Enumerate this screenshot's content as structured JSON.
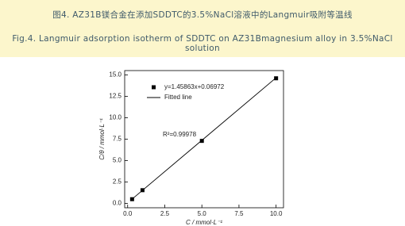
{
  "caption": {
    "cn": "图4. AZ31B镁合金在添加SDDTC的3.5%NaCl溶液中的Langmuir吸附等温线",
    "en": "Fig.4. Langmuir adsorption isotherm of SDDTC on AZ31Bmagnesium alloy in 3.5%NaCl solution"
  },
  "chart_data": {
    "type": "scatter",
    "x_label": "C / mmol·L⁻¹",
    "y_label": "C/θ / mmol·L⁻¹",
    "xlim": [
      -0.2,
      10.5
    ],
    "ylim": [
      -0.5,
      15.5
    ],
    "xticks": [
      {
        "value": 0,
        "label": "0.0"
      },
      {
        "value": 2.5,
        "label": "2.5"
      },
      {
        "value": 5,
        "label": "5.0"
      },
      {
        "value": 7.5,
        "label": "7.5"
      },
      {
        "value": 10,
        "label": "10.0"
      }
    ],
    "yticks": [
      {
        "value": 0,
        "label": "0.0"
      },
      {
        "value": 2.5,
        "label": "2.5"
      },
      {
        "value": 5,
        "label": "5.0"
      },
      {
        "value": 7.5,
        "label": "7.5"
      },
      {
        "value": 10,
        "label": "10.0"
      },
      {
        "value": 12.5,
        "label": "12.5"
      },
      {
        "value": 15,
        "label": "15.0"
      }
    ],
    "series": [
      {
        "name": "y=1.45863x+0.06972",
        "color": "#000000",
        "mode": "markers",
        "x": [
          0.3,
          1.0,
          5.0,
          10.0
        ],
        "values": [
          0.5,
          1.55,
          7.3,
          14.6
        ]
      },
      {
        "name": "Fitted line",
        "color": "#000000",
        "mode": "line",
        "x": [
          0.3,
          10.0
        ],
        "values": [
          0.51,
          14.66
        ]
      }
    ],
    "annotation": "R²=0.99978",
    "legend": "upper left"
  }
}
